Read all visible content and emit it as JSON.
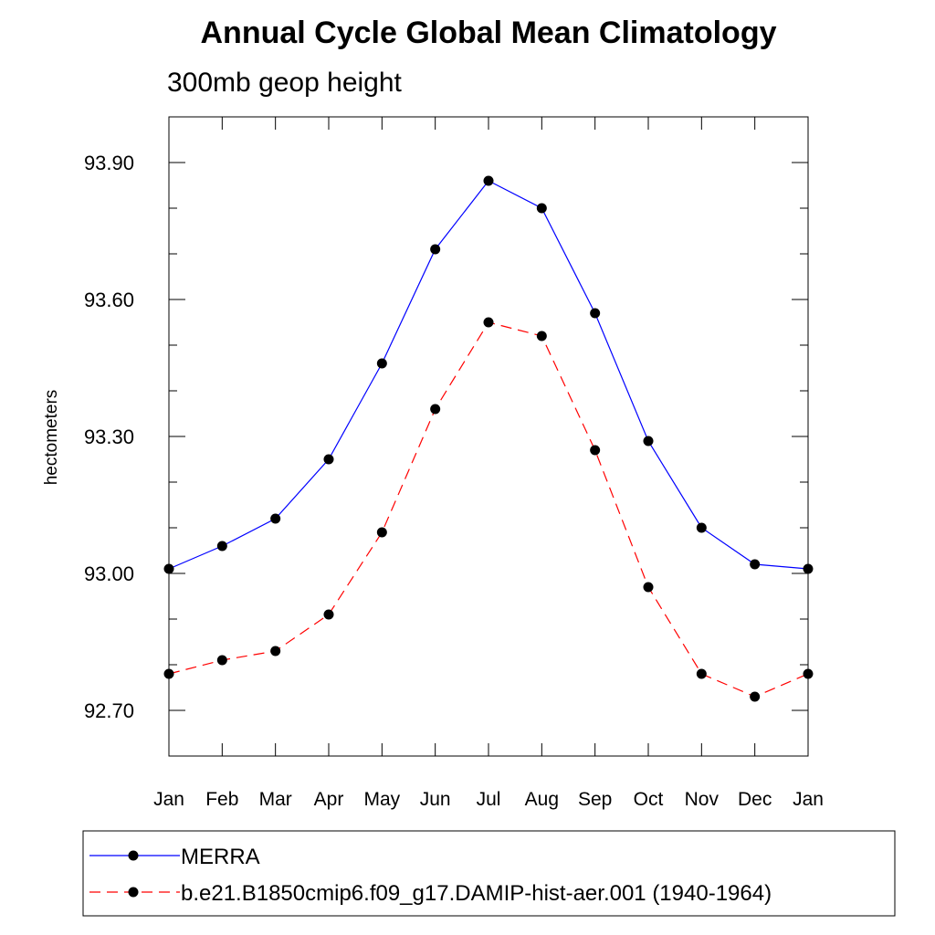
{
  "chart_data": {
    "type": "line",
    "title": "Annual Cycle Global Mean Climatology",
    "subtitle": "300mb geop height",
    "ylabel": "hectometers",
    "xlabel": "",
    "categories": [
      "Jan",
      "Feb",
      "Mar",
      "Apr",
      "May",
      "Jun",
      "Jul",
      "Aug",
      "Sep",
      "Oct",
      "Nov",
      "Dec",
      "Jan"
    ],
    "ylim": [
      92.6,
      94.0
    ],
    "yticks": [
      "92.70",
      "93.00",
      "93.30",
      "93.60",
      "93.90"
    ],
    "grid": false,
    "legend_position": "bottom",
    "series": [
      {
        "name": "MERRA",
        "color": "#0000ff",
        "dash": "solid",
        "marker": "filled-circle",
        "values": [
          93.01,
          93.06,
          93.12,
          93.25,
          93.46,
          93.71,
          93.86,
          93.8,
          93.57,
          93.29,
          93.1,
          93.02,
          93.01
        ]
      },
      {
        "name": "b.e21.B1850cmip6.f09_g17.DAMIP-hist-aer.001 (1940-1964)",
        "color": "#ff0000",
        "dash": "dashed",
        "marker": "filled-circle",
        "values": [
          92.78,
          92.81,
          92.83,
          92.91,
          93.09,
          93.36,
          93.55,
          93.52,
          93.27,
          92.97,
          92.78,
          92.73,
          92.78
        ]
      }
    ]
  }
}
